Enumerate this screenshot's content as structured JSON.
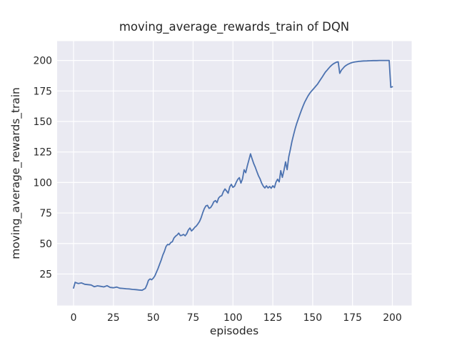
{
  "chart_data": {
    "type": "line",
    "title": "moving_average_rewards_train of DQN",
    "xlabel": "episodes",
    "ylabel": "moving_average_rewards_train",
    "x_ticks": [
      0,
      25,
      50,
      75,
      100,
      125,
      150,
      175,
      200
    ],
    "y_ticks": [
      25,
      50,
      75,
      100,
      125,
      150,
      175,
      200
    ],
    "xlim": [
      -10.3,
      212.1
    ],
    "ylim": [
      -0.8,
      215.9
    ],
    "grid": true,
    "legend_position": "none",
    "style": {
      "figure_background": "#ffffff",
      "axes_background": "#eaeaf2",
      "grid_color": "#ffffff",
      "line_color": "#4c72b0",
      "text_color": "#262626",
      "line_width": 1.8
    },
    "series": [
      {
        "name": "DQN moving average rewards (train)",
        "points": [
          [
            0,
            13.5
          ],
          [
            1,
            18.2
          ],
          [
            3,
            17.2
          ],
          [
            5,
            17.7
          ],
          [
            7,
            16.6
          ],
          [
            9,
            16.3
          ],
          [
            11,
            16.0
          ],
          [
            13,
            14.6
          ],
          [
            15,
            15.3
          ],
          [
            17,
            14.9
          ],
          [
            19,
            14.4
          ],
          [
            21,
            15.4
          ],
          [
            23,
            14.0
          ],
          [
            25,
            13.7
          ],
          [
            27,
            14.3
          ],
          [
            29,
            13.4
          ],
          [
            31,
            13.2
          ],
          [
            33,
            12.9
          ],
          [
            35,
            12.7
          ],
          [
            37,
            12.4
          ],
          [
            39,
            12.2
          ],
          [
            41,
            11.9
          ],
          [
            43,
            11.7
          ],
          [
            45,
            13.2
          ],
          [
            46,
            16.0
          ],
          [
            47,
            19.8
          ],
          [
            48,
            21.0
          ],
          [
            49,
            20.3
          ],
          [
            50,
            21.5
          ],
          [
            51,
            23.5
          ],
          [
            52,
            26.5
          ],
          [
            53,
            29.5
          ],
          [
            54,
            33.0
          ],
          [
            55,
            36.5
          ],
          [
            56,
            40.5
          ],
          [
            57,
            43.5
          ],
          [
            58,
            47.5
          ],
          [
            59,
            49.3
          ],
          [
            60,
            49.0
          ],
          [
            61,
            50.8
          ],
          [
            62,
            51.5
          ],
          [
            63,
            54.5
          ],
          [
            64,
            56.0
          ],
          [
            65,
            57.0
          ],
          [
            66,
            58.5
          ],
          [
            67,
            56.5
          ],
          [
            68,
            56.8
          ],
          [
            69,
            57.5
          ],
          [
            70,
            56.3
          ],
          [
            71,
            58.0
          ],
          [
            72,
            61.0
          ],
          [
            73,
            62.7
          ],
          [
            74,
            60.3
          ],
          [
            75,
            61.5
          ],
          [
            76,
            63.2
          ],
          [
            77,
            64.3
          ],
          [
            78,
            66.0
          ],
          [
            79,
            68.0
          ],
          [
            80,
            71.0
          ],
          [
            81,
            75.0
          ],
          [
            82,
            78.5
          ],
          [
            83,
            80.8
          ],
          [
            84,
            81.3
          ],
          [
            85,
            78.8
          ],
          [
            86,
            79.5
          ],
          [
            87,
            81.5
          ],
          [
            88,
            84.3
          ],
          [
            89,
            85.2
          ],
          [
            90,
            83.5
          ],
          [
            91,
            87.2
          ],
          [
            92,
            88.7
          ],
          [
            93,
            89.2
          ],
          [
            94,
            92.5
          ],
          [
            95,
            94.7
          ],
          [
            96,
            93.0
          ],
          [
            97,
            91.2
          ],
          [
            98,
            96.5
          ],
          [
            99,
            98.5
          ],
          [
            100,
            96.0
          ],
          [
            101,
            97.0
          ],
          [
            102,
            100.0
          ],
          [
            103,
            102.5
          ],
          [
            104,
            104.0
          ],
          [
            105,
            99.5
          ],
          [
            106,
            103.0
          ],
          [
            107,
            110.5
          ],
          [
            108,
            108.0
          ],
          [
            109,
            113.5
          ],
          [
            110,
            118.5
          ],
          [
            111,
            123.5
          ],
          [
            112,
            119.5
          ],
          [
            113,
            115.5
          ],
          [
            114,
            112.5
          ],
          [
            115,
            109.0
          ],
          [
            116,
            105.5
          ],
          [
            117,
            103.0
          ],
          [
            118,
            99.5
          ],
          [
            119,
            97.0
          ],
          [
            120,
            95.5
          ],
          [
            121,
            97.3
          ],
          [
            122,
            95.5
          ],
          [
            123,
            96.8
          ],
          [
            124,
            95.3
          ],
          [
            125,
            97.3
          ],
          [
            126,
            95.8
          ],
          [
            127,
            100.3
          ],
          [
            128,
            102.7
          ],
          [
            129,
            100.5
          ],
          [
            130,
            109.7
          ],
          [
            131,
            104.2
          ],
          [
            132,
            110.0
          ],
          [
            133,
            116.9
          ],
          [
            134,
            110.5
          ],
          [
            135,
            121.0
          ],
          [
            136,
            127.0
          ],
          [
            137,
            133.5
          ],
          [
            138,
            139.0
          ],
          [
            139,
            144.0
          ],
          [
            140,
            148.3
          ],
          [
            141,
            152.2
          ],
          [
            142,
            155.8
          ],
          [
            143,
            159.3
          ],
          [
            144,
            162.8
          ],
          [
            145,
            165.8
          ],
          [
            146,
            168.3
          ],
          [
            147,
            170.8
          ],
          [
            148,
            172.8
          ],
          [
            149,
            174.5
          ],
          [
            150,
            176.0
          ],
          [
            151,
            177.5
          ],
          [
            152,
            179.0
          ],
          [
            153,
            180.5
          ],
          [
            154,
            182.5
          ],
          [
            155,
            184.5
          ],
          [
            156,
            186.5
          ],
          [
            157,
            188.5
          ],
          [
            158,
            190.5
          ],
          [
            159,
            192.0
          ],
          [
            160,
            193.5
          ],
          [
            161,
            195.0
          ],
          [
            162,
            196.3
          ],
          [
            163,
            197.3
          ],
          [
            164,
            198.0
          ],
          [
            165,
            198.7
          ],
          [
            166,
            198.9
          ],
          [
            167,
            189.5
          ],
          [
            168,
            192.0
          ],
          [
            169,
            193.5
          ],
          [
            170,
            195.0
          ],
          [
            171,
            196.0
          ],
          [
            172,
            196.8
          ],
          [
            173,
            197.4
          ],
          [
            174,
            198.0
          ],
          [
            175,
            198.4
          ],
          [
            176,
            198.7
          ],
          [
            177,
            198.9
          ],
          [
            178,
            199.1
          ],
          [
            179,
            199.3
          ],
          [
            180,
            199.4
          ],
          [
            182,
            199.6
          ],
          [
            184,
            199.7
          ],
          [
            186,
            199.8
          ],
          [
            188,
            199.9
          ],
          [
            190,
            199.9
          ],
          [
            192,
            200.0
          ],
          [
            194,
            200.0
          ],
          [
            196,
            200.0
          ],
          [
            198,
            200.0
          ],
          [
            199,
            178.0
          ],
          [
            200,
            178.5
          ]
        ]
      }
    ]
  }
}
